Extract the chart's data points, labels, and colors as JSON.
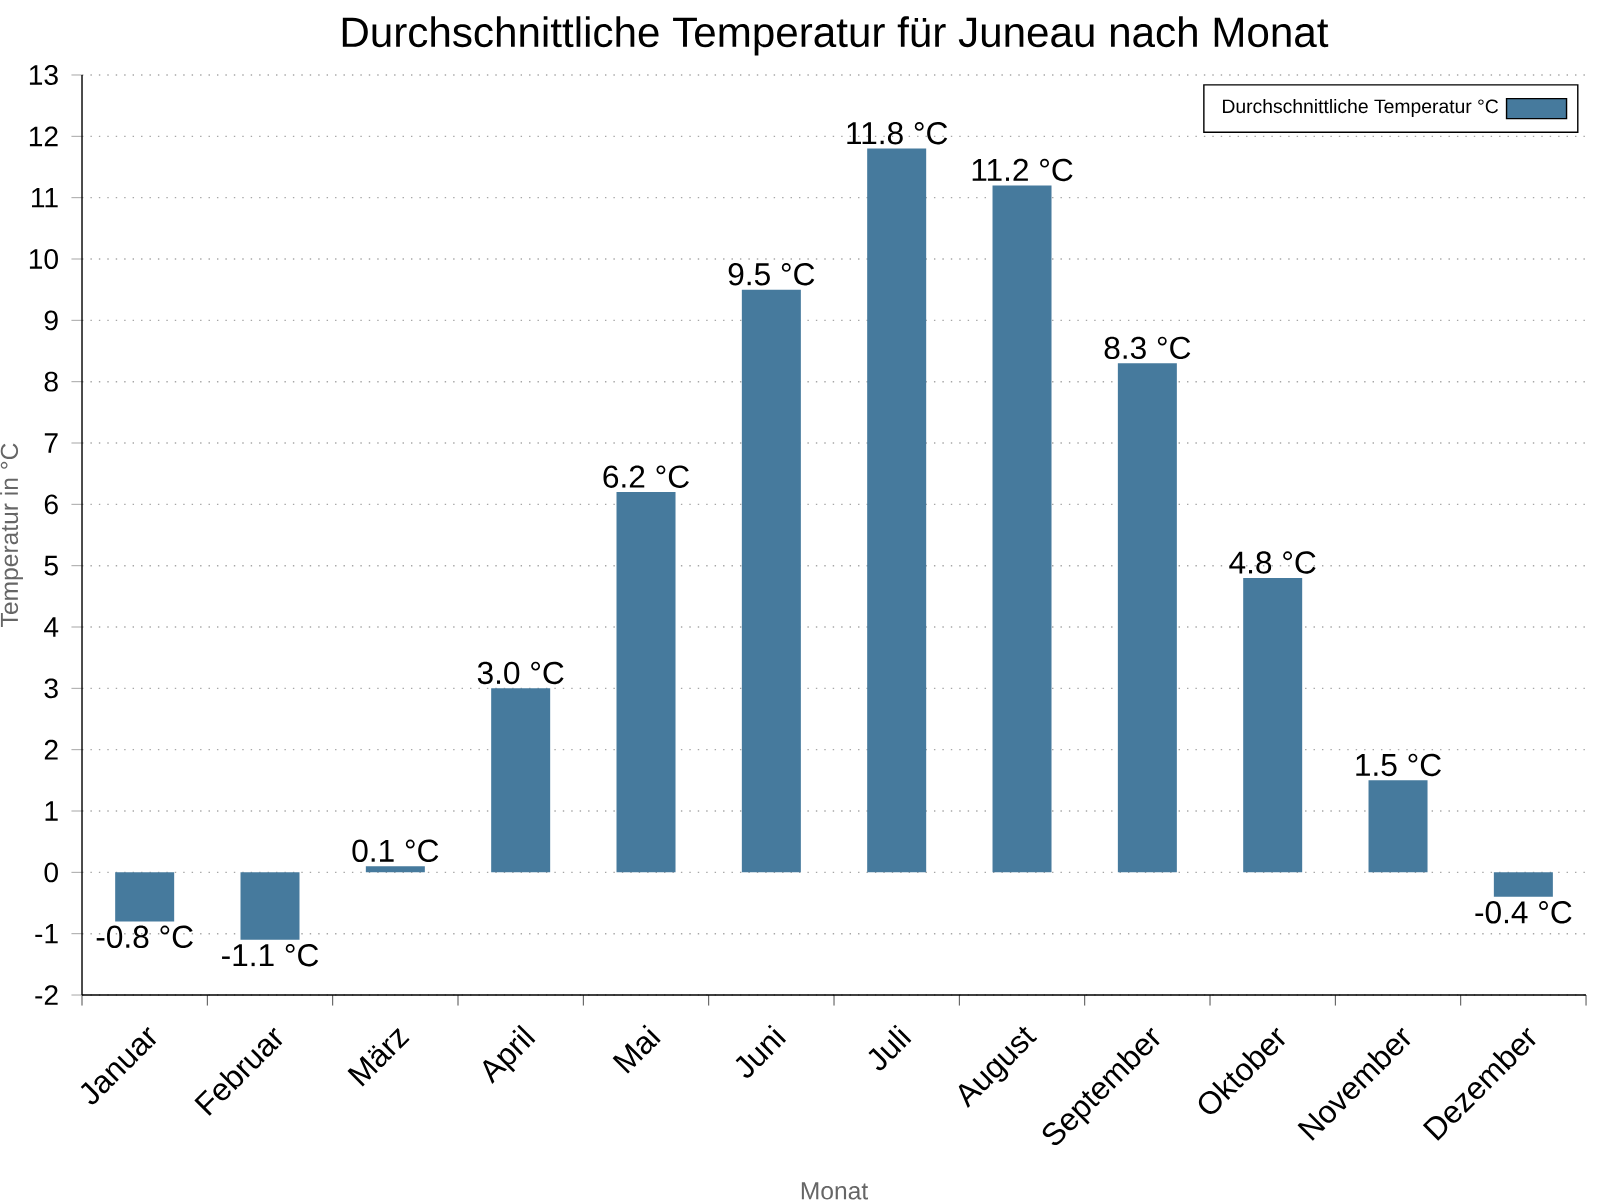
{
  "chart_data": {
    "type": "bar",
    "title": "Durchschnittliche Temperatur für Juneau nach Monat",
    "xlabel": "Monat",
    "ylabel": "Temperatur in °C",
    "categories": [
      "Januar",
      "Februar",
      "März",
      "April",
      "Mai",
      "Juni",
      "Juli",
      "August",
      "September",
      "Oktober",
      "November",
      "Dezember"
    ],
    "series": [
      {
        "name": "Durchschnittliche Temperatur °C",
        "color": "#467a9d",
        "values": [
          -0.8,
          -1.1,
          0.1,
          3.0,
          6.2,
          9.5,
          11.8,
          11.2,
          8.3,
          4.8,
          1.5,
          -0.4
        ],
        "value_labels": [
          "-0.8 °C",
          "-1.1 °C",
          "0.1 °C",
          "3.0 °C",
          "6.2 °C",
          "9.5 °C",
          "11.8 °C",
          "11.2 °C",
          "8.3 °C",
          "4.8 °C",
          "1.5 °C",
          "-0.4 °C"
        ]
      }
    ],
    "ylim": [
      -2,
      13
    ],
    "yticks": [
      -2,
      -1,
      0,
      1,
      2,
      3,
      4,
      5,
      6,
      7,
      8,
      9,
      10,
      11,
      12,
      13
    ],
    "grid": "y",
    "legend": "top right"
  }
}
